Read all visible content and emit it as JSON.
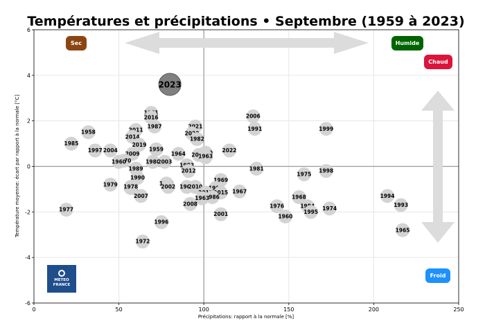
{
  "chart_data": {
    "type": "scatter",
    "title": "Températures et précipitations • Septembre (1959 à 2023)",
    "xlabel": "Précipitations: rapport à la normale [%]",
    "ylabel": "Température moyenne: écart par rapport à la normale [°C]",
    "xlim": [
      0,
      250
    ],
    "ylim": [
      -6,
      6
    ],
    "xticks": [
      0,
      50,
      100,
      150,
      200,
      250
    ],
    "yticks": [
      -6,
      -4,
      -2,
      0,
      2,
      4,
      6
    ],
    "grid": true,
    "reference_lines": {
      "x": 100,
      "y": 0
    },
    "highlight_year": "2023",
    "points": [
      {
        "label": "2023",
        "x": 80,
        "y": 3.6
      },
      {
        "label": "1961",
        "x": 69,
        "y": 2.35
      },
      {
        "label": "2016",
        "x": 69,
        "y": 2.15
      },
      {
        "label": "1987",
        "x": 71,
        "y": 1.75
      },
      {
        "label": "2011",
        "x": 60,
        "y": 1.6
      },
      {
        "label": "2014",
        "x": 58,
        "y": 1.3
      },
      {
        "label": "2019",
        "x": 62,
        "y": 0.95
      },
      {
        "label": "1958",
        "x": 32,
        "y": 1.5
      },
      {
        "label": "1985",
        "x": 22,
        "y": 1.0
      },
      {
        "label": "1997",
        "x": 36,
        "y": 0.7
      },
      {
        "label": "2004",
        "x": 45,
        "y": 0.7
      },
      {
        "label": "2009",
        "x": 58,
        "y": 0.55
      },
      {
        "label": "1959",
        "x": 72,
        "y": 0.75
      },
      {
        "label": "1970",
        "x": 53,
        "y": 0.25
      },
      {
        "label": "1960",
        "x": 50,
        "y": 0.2
      },
      {
        "label": "1989",
        "x": 60,
        "y": -0.1
      },
      {
        "label": "1980",
        "x": 70,
        "y": 0.2
      },
      {
        "label": "2003",
        "x": 77,
        "y": 0.2
      },
      {
        "label": "1964",
        "x": 85,
        "y": 0.55
      },
      {
        "label": "2021",
        "x": 95,
        "y": 1.75
      },
      {
        "label": "2020",
        "x": 93,
        "y": 1.45
      },
      {
        "label": "1982",
        "x": 96,
        "y": 1.2
      },
      {
        "label": "1983",
        "x": 90,
        "y": 0.05
      },
      {
        "label": "2012",
        "x": 91,
        "y": -0.2
      },
      {
        "label": "2000",
        "x": 101,
        "y": 0.6
      },
      {
        "label": "2005",
        "x": 97,
        "y": 0.5
      },
      {
        "label": "2013",
        "x": 101,
        "y": 0.4
      },
      {
        "label": "1963",
        "x": 101,
        "y": 0.45
      },
      {
        "label": "2022",
        "x": 115,
        "y": 0.7
      },
      {
        "label": "2006",
        "x": 129,
        "y": 2.2
      },
      {
        "label": "1991",
        "x": 130,
        "y": 1.65
      },
      {
        "label": "1981",
        "x": 131,
        "y": -0.1
      },
      {
        "label": "1999",
        "x": 172,
        "y": 1.65
      },
      {
        "label": "1975",
        "x": 159,
        "y": -0.35
      },
      {
        "label": "1998",
        "x": 172,
        "y": -0.2
      },
      {
        "label": "1990",
        "x": 61,
        "y": -0.5
      },
      {
        "label": "1979",
        "x": 45,
        "y": -0.8
      },
      {
        "label": "1971",
        "x": 57,
        "y": -0.95
      },
      {
        "label": "1978",
        "x": 57,
        "y": -0.9
      },
      {
        "label": "2007",
        "x": 63,
        "y": -1.3
      },
      {
        "label": "1988",
        "x": 78,
        "y": -0.75
      },
      {
        "label": "2002",
        "x": 79,
        "y": -0.9
      },
      {
        "label": "1962",
        "x": 90,
        "y": -0.9
      },
      {
        "label": "2010",
        "x": 95,
        "y": -0.9
      },
      {
        "label": "1969",
        "x": 110,
        "y": -0.6
      },
      {
        "label": "1992",
        "x": 107,
        "y": -0.95
      },
      {
        "label": "2017",
        "x": 101,
        "y": -1.15
      },
      {
        "label": "2015",
        "x": 110,
        "y": -1.15
      },
      {
        "label": "1986",
        "x": 105,
        "y": -1.35
      },
      {
        "label": "1963",
        "x": 99,
        "y": -1.4
      },
      {
        "label": "1967",
        "x": 121,
        "y": -1.1
      },
      {
        "label": "2008",
        "x": 92,
        "y": -1.65
      },
      {
        "label": "2001",
        "x": 110,
        "y": -2.1
      },
      {
        "label": "1996",
        "x": 75,
        "y": -2.45
      },
      {
        "label": "1972",
        "x": 64,
        "y": -3.3
      },
      {
        "label": "1977",
        "x": 19,
        "y": -1.9
      },
      {
        "label": "1976",
        "x": 143,
        "y": -1.75
      },
      {
        "label": "1968",
        "x": 156,
        "y": -1.35
      },
      {
        "label": "1960",
        "x": 148,
        "y": -2.2
      },
      {
        "label": "1984",
        "x": 161,
        "y": -1.75
      },
      {
        "label": "1995",
        "x": 163,
        "y": -2.0
      },
      {
        "label": "1974",
        "x": 174,
        "y": -1.85
      },
      {
        "label": "1994",
        "x": 208,
        "y": -1.3
      },
      {
        "label": "1993",
        "x": 216,
        "y": -1.7
      },
      {
        "label": "1965",
        "x": 217,
        "y": -2.8
      }
    ]
  },
  "annotations": {
    "sec": "Sec",
    "humide": "Humide",
    "chaud": "Chaud",
    "froid": "Froid"
  },
  "logo": {
    "line1": "METEO",
    "line2": "FRANCE"
  },
  "colors": {
    "sec": "#8B4513",
    "humide": "#006400",
    "chaud": "#DC143C",
    "froid": "#1E90FF",
    "point": "#d3d3d3",
    "highlight": "#808080",
    "arrow": "#dcdcdc",
    "logo": "#1f4e8c"
  }
}
